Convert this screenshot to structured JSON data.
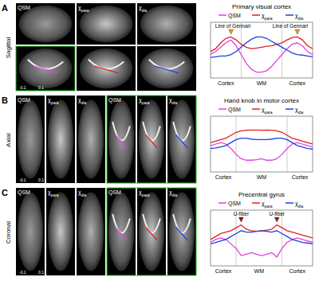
{
  "panels": [
    {
      "label": "A",
      "view": "Sagittal",
      "image_titles": [
        "QSM",
        "χpara",
        "χdia"
      ],
      "colorbar_labels": [
        "-0.1",
        "0.1"
      ]
    },
    {
      "label": "B",
      "view": "Axial",
      "image_titles": [
        "QSM",
        "χpara",
        "χdia",
        "QSM",
        "χpara",
        "χdia"
      ],
      "colorbar_labels": [
        "-0.1",
        "0.1"
      ]
    },
    {
      "label": "C",
      "view": "Coronal",
      "image_titles": [
        "QSM",
        "χpara",
        "χdia",
        "QSM",
        "χpara",
        "χdia"
      ],
      "colorbar_labels": [
        "-0.1",
        "0.1"
      ]
    }
  ],
  "chart_data": [
    {
      "type": "line",
      "title": "Primary visual cortex",
      "tick_labels": false,
      "legend": "top",
      "x": [
        0,
        1,
        2,
        3,
        4,
        5,
        6,
        7,
        8,
        9,
        10,
        11,
        12,
        13,
        14,
        15,
        16,
        17,
        18,
        19,
        20
      ],
      "xlim": [
        0,
        20
      ],
      "ylim": [
        -0.06,
        0.13
      ],
      "boundaries": [
        6,
        14
      ],
      "region_labels": [
        {
          "x": 3,
          "label": "Cortex"
        },
        {
          "x": 10,
          "label": "WM"
        },
        {
          "x": 17,
          "label": "Cortex"
        }
      ],
      "annotations": [
        {
          "x": 4,
          "label": "Line of Gennari"
        },
        {
          "x": 17,
          "label": "Line of Gennari"
        }
      ],
      "series": [
        {
          "name": "QSM",
          "color": "#e040e0",
          "values": [
            0.02,
            0.03,
            0.045,
            0.06,
            0.07,
            0.05,
            0.02,
            -0.01,
            -0.03,
            -0.04,
            -0.04,
            -0.035,
            -0.02,
            0.0,
            0.02,
            0.04,
            0.055,
            0.06,
            0.05,
            0.03,
            0.02
          ]
        },
        {
          "name": "χpara",
          "color": "#e02020",
          "values": [
            0.03,
            0.04,
            0.06,
            0.075,
            0.08,
            0.07,
            0.055,
            0.045,
            0.04,
            0.042,
            0.045,
            0.048,
            0.05,
            0.055,
            0.06,
            0.07,
            0.078,
            0.08,
            0.07,
            0.05,
            0.04
          ]
        },
        {
          "name": "χdia",
          "color": "#2040e0",
          "values": [
            0.01,
            0.012,
            0.015,
            0.015,
            0.02,
            0.03,
            0.045,
            0.06,
            0.072,
            0.08,
            0.08,
            0.075,
            0.065,
            0.055,
            0.045,
            0.035,
            0.025,
            0.02,
            0.018,
            0.015,
            0.012
          ]
        }
      ]
    },
    {
      "type": "line",
      "title": "Hand knob in motor cortex",
      "tick_labels": false,
      "legend": "top",
      "x": [
        0,
        1,
        2,
        3,
        4,
        5,
        6,
        7,
        8,
        9,
        10,
        11,
        12,
        13,
        14,
        15,
        16,
        17,
        18,
        19,
        20
      ],
      "xlim": [
        0,
        20
      ],
      "ylim": [
        -0.06,
        0.13
      ],
      "boundaries": [
        5,
        15
      ],
      "region_labels": [
        {
          "x": 2.5,
          "label": "Cortex"
        },
        {
          "x": 10,
          "label": "WM"
        },
        {
          "x": 17.5,
          "label": "Cortex"
        }
      ],
      "annotations": [],
      "series": [
        {
          "name": "QSM",
          "color": "#e040e0",
          "values": [
            0.03,
            0.035,
            0.04,
            0.035,
            0.02,
            0.0,
            -0.015,
            -0.02,
            -0.02,
            -0.018,
            -0.015,
            -0.02,
            -0.02,
            -0.015,
            0.0,
            0.02,
            0.035,
            0.04,
            0.035,
            0.03,
            0.025
          ]
        },
        {
          "name": "χpara",
          "color": "#e02020",
          "values": [
            0.04,
            0.045,
            0.05,
            0.055,
            0.065,
            0.075,
            0.08,
            0.082,
            0.083,
            0.083,
            0.082,
            0.083,
            0.082,
            0.08,
            0.075,
            0.065,
            0.055,
            0.05,
            0.045,
            0.04,
            0.035
          ]
        },
        {
          "name": "χdia",
          "color": "#2040e0",
          "values": [
            0.02,
            0.022,
            0.025,
            0.03,
            0.04,
            0.05,
            0.055,
            0.055,
            0.052,
            0.05,
            0.05,
            0.05,
            0.052,
            0.055,
            0.055,
            0.05,
            0.04,
            0.03,
            0.025,
            0.02,
            0.018
          ]
        }
      ]
    },
    {
      "type": "line",
      "title": "Precentral gyrus",
      "tick_labels": false,
      "legend": "top",
      "x": [
        0,
        1,
        2,
        3,
        4,
        5,
        6,
        7,
        8,
        9,
        10,
        11,
        12,
        13,
        14,
        15,
        16,
        17,
        18,
        19,
        20
      ],
      "xlim": [
        0,
        20
      ],
      "ylim": [
        -0.06,
        0.13
      ],
      "boundaries": [
        5,
        14
      ],
      "region_labels": [
        {
          "x": 2.5,
          "label": "Cortex"
        },
        {
          "x": 9.5,
          "label": "WM"
        },
        {
          "x": 17,
          "label": "Cortex"
        }
      ],
      "annotations": [
        {
          "x": 6,
          "label": "U-fiber"
        },
        {
          "x": 13,
          "label": "U-fiber"
        }
      ],
      "series": [
        {
          "name": "QSM",
          "color": "#e040e0",
          "values": [
            0.02,
            0.03,
            0.035,
            0.03,
            0.015,
            0.0,
            -0.025,
            -0.02,
            -0.015,
            -0.02,
            -0.025,
            -0.02,
            -0.015,
            -0.03,
            0.0,
            0.02,
            0.03,
            0.035,
            0.03,
            0.025,
            0.02
          ]
        },
        {
          "name": "χpara",
          "color": "#e02020",
          "values": [
            0.03,
            0.04,
            0.05,
            0.055,
            0.06,
            0.07,
            0.08,
            0.065,
            0.06,
            0.058,
            0.06,
            0.062,
            0.065,
            0.08,
            0.07,
            0.06,
            0.055,
            0.05,
            0.045,
            0.04,
            0.035
          ]
        },
        {
          "name": "χdia",
          "color": "#2040e0",
          "values": [
            0.015,
            0.02,
            0.025,
            0.03,
            0.04,
            0.05,
            0.06,
            0.055,
            0.055,
            0.058,
            0.06,
            0.058,
            0.055,
            0.06,
            0.05,
            0.04,
            0.03,
            0.025,
            0.02,
            0.018,
            0.015
          ]
        }
      ]
    }
  ]
}
